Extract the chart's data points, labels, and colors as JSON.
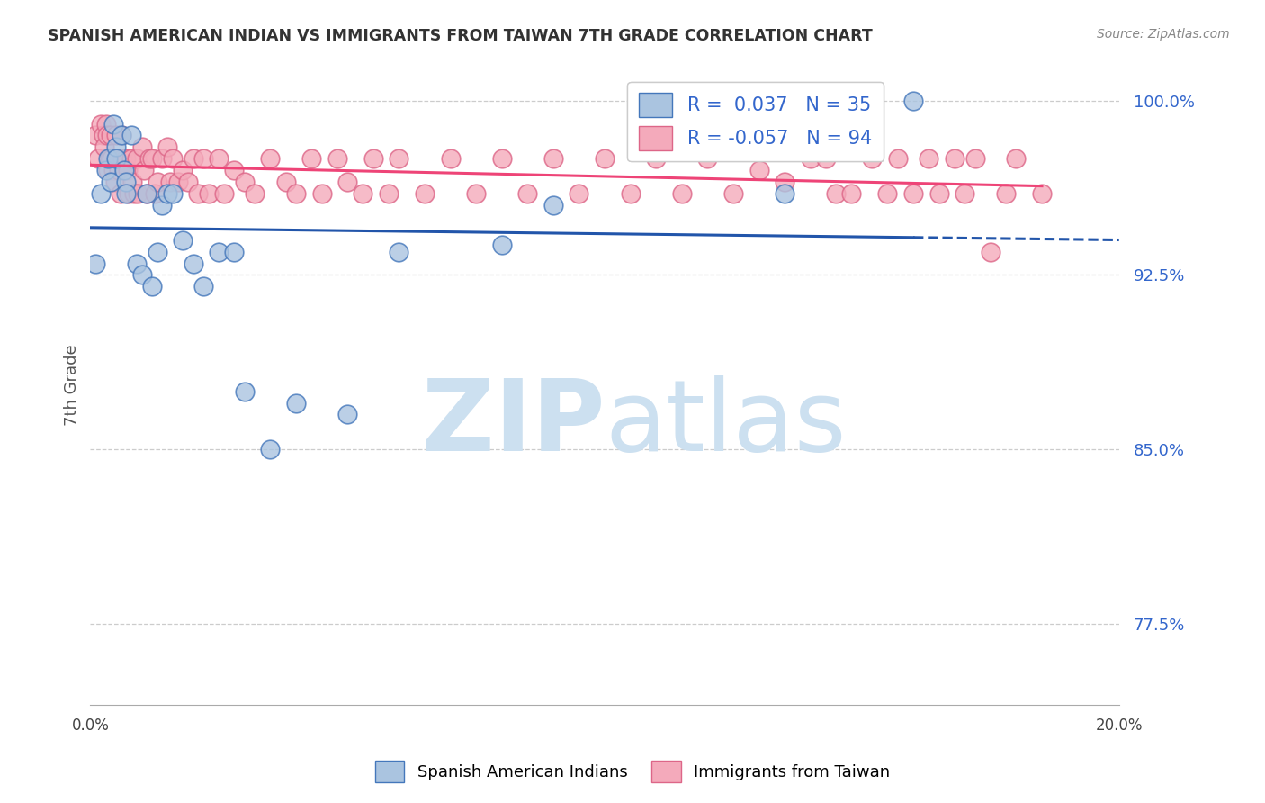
{
  "title": "SPANISH AMERICAN INDIAN VS IMMIGRANTS FROM TAIWAN 7TH GRADE CORRELATION CHART",
  "source": "Source: ZipAtlas.com",
  "ylabel": "7th Grade",
  "xlim": [
    0.0,
    20.0
  ],
  "ylim": [
    74.0,
    101.5
  ],
  "y_ticks": [
    77.5,
    85.0,
    92.5,
    100.0
  ],
  "y_tick_labels": [
    "77.5%",
    "85.0%",
    "92.5%",
    "100.0%"
  ],
  "x_tick_positions": [
    0.0,
    4.0,
    8.0,
    12.0,
    16.0,
    20.0
  ],
  "x_tick_labels": [
    "0.0%",
    "",
    "",
    "",
    "",
    "20.0%"
  ],
  "blue_r": 0.037,
  "blue_n": 35,
  "pink_r": -0.057,
  "pink_n": 94,
  "blue_fill_color": "#aac4e0",
  "pink_fill_color": "#f4aabb",
  "blue_edge_color": "#4477bb",
  "pink_edge_color": "#dd6688",
  "blue_line_color": "#2255aa",
  "pink_line_color": "#ee4477",
  "watermark_color": "#cce0f0",
  "blue_scatter_x": [
    0.1,
    0.2,
    0.3,
    0.35,
    0.4,
    0.45,
    0.5,
    0.5,
    0.6,
    0.65,
    0.7,
    0.7,
    0.8,
    0.9,
    1.0,
    1.1,
    1.2,
    1.3,
    1.4,
    1.5,
    1.6,
    1.8,
    2.0,
    2.2,
    2.5,
    2.8,
    3.0,
    3.5,
    4.0,
    5.0,
    6.0,
    8.0,
    9.0,
    13.5,
    16.0
  ],
  "blue_scatter_y": [
    93.0,
    96.0,
    97.0,
    97.5,
    96.5,
    99.0,
    98.0,
    97.5,
    98.5,
    97.0,
    96.5,
    96.0,
    98.5,
    93.0,
    92.5,
    96.0,
    92.0,
    93.5,
    95.5,
    96.0,
    96.0,
    94.0,
    93.0,
    92.0,
    93.5,
    93.5,
    87.5,
    85.0,
    87.0,
    86.5,
    93.5,
    93.8,
    95.5,
    96.0,
    100.0
  ],
  "pink_scatter_x": [
    0.1,
    0.15,
    0.2,
    0.25,
    0.28,
    0.3,
    0.32,
    0.35,
    0.38,
    0.4,
    0.42,
    0.45,
    0.48,
    0.5,
    0.52,
    0.55,
    0.58,
    0.6,
    0.62,
    0.65,
    0.7,
    0.72,
    0.75,
    0.8,
    0.82,
    0.85,
    0.9,
    0.92,
    1.0,
    1.05,
    1.1,
    1.15,
    1.2,
    1.25,
    1.3,
    1.4,
    1.5,
    1.55,
    1.6,
    1.7,
    1.8,
    1.9,
    2.0,
    2.1,
    2.2,
    2.3,
    2.5,
    2.6,
    2.8,
    3.0,
    3.2,
    3.5,
    3.8,
    4.0,
    4.3,
    4.5,
    4.8,
    5.0,
    5.3,
    5.5,
    5.8,
    6.0,
    6.5,
    7.0,
    7.5,
    8.0,
    8.5,
    9.0,
    9.5,
    10.0,
    10.5,
    11.0,
    11.5,
    12.0,
    12.5,
    13.0,
    13.5,
    14.0,
    14.5,
    14.3,
    14.8,
    15.2,
    15.5,
    15.7,
    16.0,
    16.3,
    16.5,
    16.8,
    17.0,
    17.2,
    17.5,
    17.8,
    18.0,
    18.5
  ],
  "pink_scatter_y": [
    98.5,
    97.5,
    99.0,
    98.5,
    98.0,
    99.0,
    98.5,
    97.0,
    97.5,
    98.5,
    97.5,
    97.0,
    96.5,
    98.5,
    97.5,
    97.0,
    96.0,
    98.5,
    97.5,
    97.0,
    97.5,
    97.0,
    96.0,
    97.5,
    96.5,
    96.0,
    97.5,
    96.0,
    98.0,
    97.0,
    96.0,
    97.5,
    97.5,
    96.0,
    96.5,
    97.5,
    98.0,
    96.5,
    97.5,
    96.5,
    97.0,
    96.5,
    97.5,
    96.0,
    97.5,
    96.0,
    97.5,
    96.0,
    97.0,
    96.5,
    96.0,
    97.5,
    96.5,
    96.0,
    97.5,
    96.0,
    97.5,
    96.5,
    96.0,
    97.5,
    96.0,
    97.5,
    96.0,
    97.5,
    96.0,
    97.5,
    96.0,
    97.5,
    96.0,
    97.5,
    96.0,
    97.5,
    96.0,
    97.5,
    96.0,
    97.0,
    96.5,
    97.5,
    96.0,
    97.5,
    96.0,
    97.5,
    96.0,
    97.5,
    96.0,
    97.5,
    96.0,
    97.5,
    96.0,
    97.5,
    93.5,
    96.0,
    97.5,
    96.0
  ]
}
